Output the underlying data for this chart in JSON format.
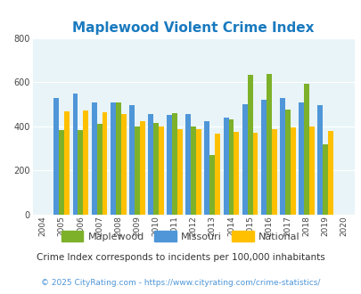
{
  "title": "Maplewood Violent Crime Index",
  "years": [
    2004,
    2005,
    2006,
    2007,
    2008,
    2009,
    2010,
    2011,
    2012,
    2013,
    2014,
    2015,
    2016,
    2017,
    2018,
    2019,
    2020
  ],
  "maplewood": [
    0,
    383,
    383,
    413,
    510,
    398,
    415,
    462,
    398,
    272,
    430,
    632,
    638,
    477,
    595,
    320,
    0
  ],
  "missouri": [
    0,
    527,
    548,
    510,
    510,
    498,
    455,
    452,
    457,
    422,
    440,
    500,
    520,
    530,
    507,
    498,
    0
  ],
  "national": [
    0,
    467,
    473,
    466,
    455,
    425,
    400,
    388,
    387,
    368,
    376,
    373,
    386,
    394,
    399,
    379,
    0
  ],
  "ylim": [
    0,
    800
  ],
  "yticks": [
    0,
    200,
    400,
    600,
    800
  ],
  "bar_colors": {
    "maplewood": "#7db12a",
    "missouri": "#4f96d8",
    "national": "#ffc000"
  },
  "legend_labels": [
    "Maplewood",
    "Missouri",
    "National"
  ],
  "subtitle": "Crime Index corresponds to incidents per 100,000 inhabitants",
  "footer": "© 2025 CityRating.com - https://www.cityrating.com/crime-statistics/",
  "bg_color": "#e8f4f8",
  "fig_bg": "#ffffff",
  "title_color": "#1a7abf",
  "subtitle_color": "#333333",
  "footer_color": "#4f96d8"
}
